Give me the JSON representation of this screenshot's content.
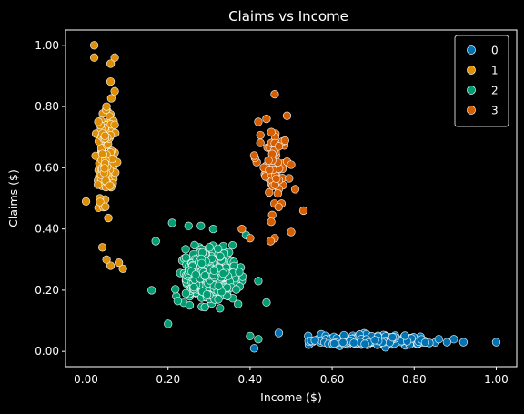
{
  "chart_data": {
    "type": "scatter",
    "title": "Claims vs Income",
    "xlabel": "Income ($)",
    "ylabel": "Claims ($)",
    "xlim": [
      -0.05,
      1.05
    ],
    "ylim": [
      -0.05,
      1.05
    ],
    "xticks": [
      "0.00",
      "0.20",
      "0.40",
      "0.60",
      "0.80",
      "1.00"
    ],
    "yticks": [
      "0.00",
      "0.20",
      "0.40",
      "0.60",
      "0.80",
      "1.00"
    ],
    "grid": false,
    "legend": {
      "placement": "top-right",
      "entries": [
        "0",
        "1",
        "2",
        "3"
      ]
    },
    "series": [
      {
        "name": "0",
        "color": "#0173b2",
        "cluster": {
          "x_range": [
            0.4,
            1.0
          ],
          "y_range": [
            0.0,
            0.07
          ],
          "count": 220
        },
        "points": [
          [
            0.92,
            0.03
          ],
          [
            1.0,
            0.03
          ],
          [
            0.88,
            0.03
          ],
          [
            0.86,
            0.04
          ],
          [
            0.41,
            0.01
          ],
          [
            0.47,
            0.06
          ]
        ]
      },
      {
        "name": "1",
        "color": "#de8f05",
        "cluster": {
          "x_range": [
            0.0,
            0.1
          ],
          "y_range": [
            0.28,
            1.0
          ],
          "count": 110
        },
        "points": [
          [
            0.02,
            1.0
          ],
          [
            0.02,
            0.96
          ],
          [
            0.07,
            0.96
          ],
          [
            0.06,
            0.94
          ],
          [
            0.07,
            0.85
          ],
          [
            0.05,
            0.8
          ],
          [
            0.03,
            0.75
          ],
          [
            0.07,
            0.74
          ],
          [
            0.0,
            0.49
          ],
          [
            0.06,
            0.28
          ],
          [
            0.08,
            0.29
          ],
          [
            0.09,
            0.27
          ],
          [
            0.05,
            0.3
          ],
          [
            0.04,
            0.34
          ]
        ]
      },
      {
        "name": "2",
        "color": "#029e73",
        "cluster": {
          "x_range": [
            0.16,
            0.44
          ],
          "y_range": [
            0.08,
            0.42
          ],
          "count": 420
        },
        "points": [
          [
            0.21,
            0.42
          ],
          [
            0.28,
            0.41
          ],
          [
            0.25,
            0.41
          ],
          [
            0.31,
            0.4
          ],
          [
            0.17,
            0.36
          ],
          [
            0.16,
            0.2
          ],
          [
            0.2,
            0.09
          ],
          [
            0.39,
            0.38
          ],
          [
            0.44,
            0.16
          ],
          [
            0.42,
            0.23
          ],
          [
            0.4,
            0.05
          ],
          [
            0.42,
            0.04
          ]
        ]
      },
      {
        "name": "3",
        "color": "#d55e00",
        "cluster": {
          "x_range": [
            0.38,
            0.53
          ],
          "y_range": [
            0.35,
            0.84
          ],
          "count": 60
        },
        "points": [
          [
            0.46,
            0.84
          ],
          [
            0.49,
            0.77
          ],
          [
            0.44,
            0.76
          ],
          [
            0.42,
            0.75
          ],
          [
            0.46,
            0.68
          ],
          [
            0.47,
            0.67
          ],
          [
            0.41,
            0.64
          ],
          [
            0.49,
            0.62
          ],
          [
            0.5,
            0.61
          ],
          [
            0.51,
            0.53
          ],
          [
            0.53,
            0.46
          ],
          [
            0.5,
            0.39
          ],
          [
            0.46,
            0.37
          ],
          [
            0.45,
            0.36
          ],
          [
            0.38,
            0.4
          ],
          [
            0.4,
            0.37
          ]
        ]
      }
    ]
  }
}
